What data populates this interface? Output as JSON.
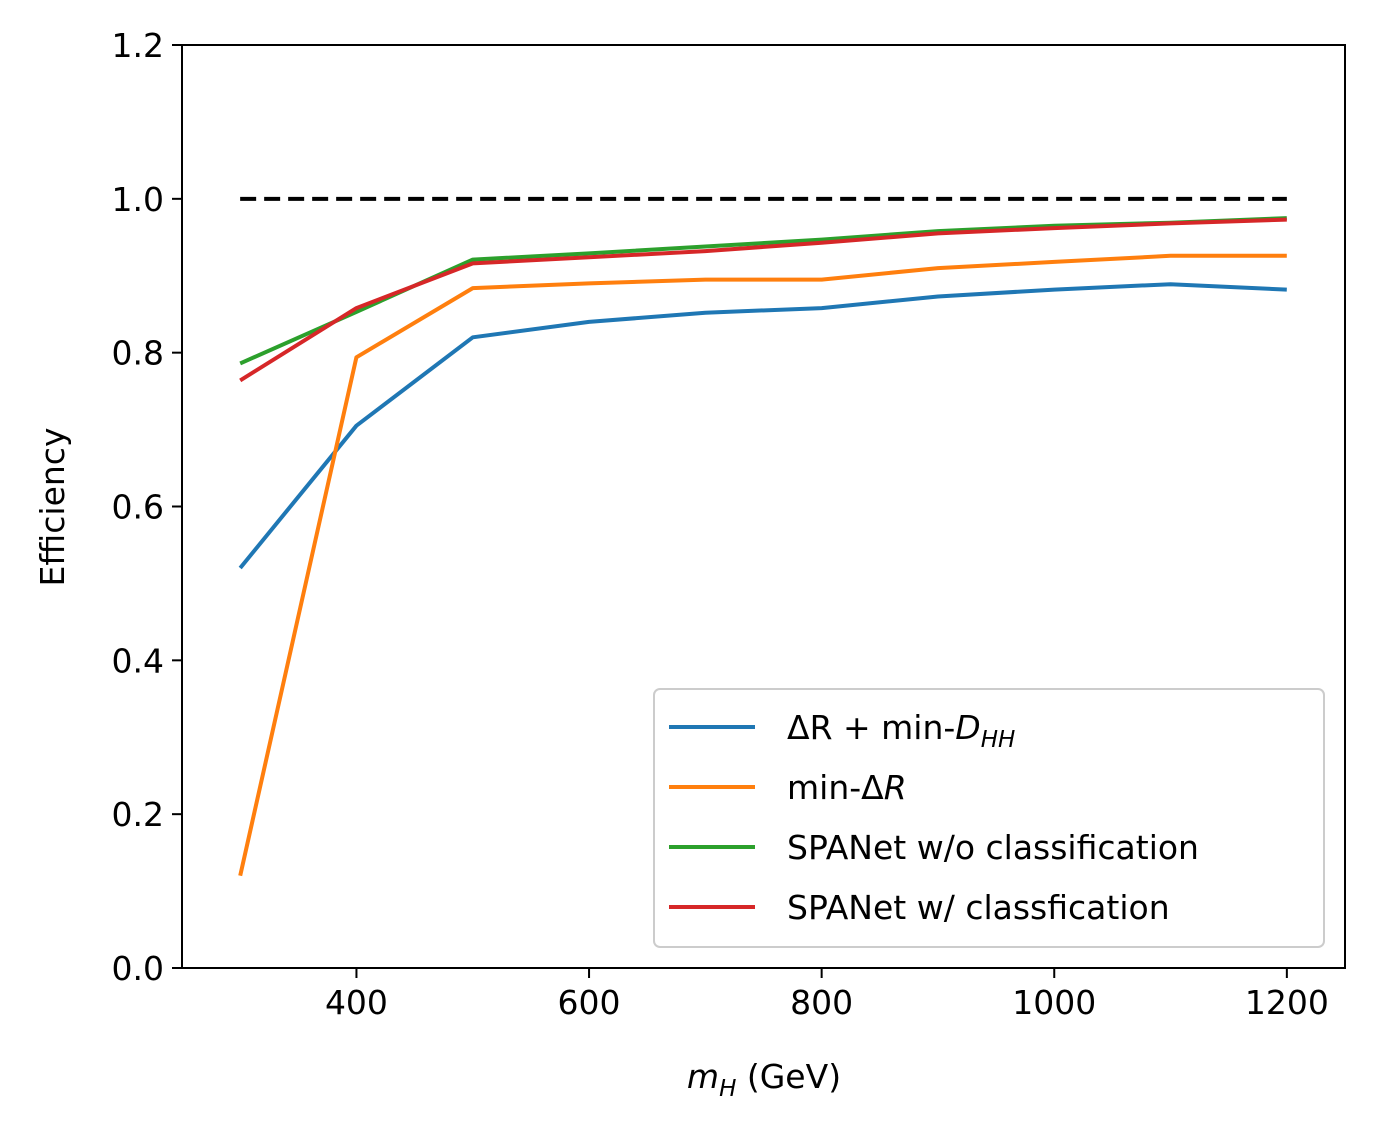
{
  "chart_data": {
    "type": "line",
    "xlabel_math": "m",
    "xlabel_sub": "H",
    "xlabel_unit": " (GeV)",
    "ylabel": "Efficiency",
    "xlim": [
      250,
      1250
    ],
    "ylim": [
      0.0,
      1.2
    ],
    "x_ticks": [
      400,
      600,
      800,
      1000,
      1200
    ],
    "x_tick_labels": [
      "400",
      "600",
      "800",
      "1000",
      "1200"
    ],
    "y_ticks": [
      0.0,
      0.2,
      0.4,
      0.6,
      0.8,
      1.0,
      1.2
    ],
    "y_tick_labels": [
      "0.0",
      "0.2",
      "0.4",
      "0.6",
      "0.8",
      "1.0",
      "1.2"
    ],
    "x": [
      300,
      400,
      500,
      600,
      700,
      800,
      900,
      1000,
      1100,
      1200
    ],
    "series": [
      {
        "legend": {
          "pre": "ΔR + min-",
          "italic": "D",
          "sub": "HH"
        },
        "color": "#1f77b4",
        "values": [
          0.52,
          0.705,
          0.82,
          0.84,
          0.852,
          0.858,
          0.873,
          0.882,
          0.889,
          0.882
        ]
      },
      {
        "legend": {
          "pre": "min-Δ",
          "italic": "R",
          "sub": ""
        },
        "color": "#ff7f0e",
        "values": [
          0.12,
          0.794,
          0.884,
          0.89,
          0.895,
          0.895,
          0.91,
          0.918,
          0.926,
          0.926
        ]
      },
      {
        "legend": {
          "pre": "SPANet w/o classification",
          "italic": "",
          "sub": ""
        },
        "color": "#2ca02c",
        "values": [
          0.786,
          0.853,
          0.921,
          0.929,
          0.938,
          0.947,
          0.958,
          0.965,
          0.969,
          0.975
        ]
      },
      {
        "legend": {
          "pre": "SPANet w/ classfication",
          "italic": "",
          "sub": ""
        },
        "color": "#d62728",
        "values": [
          0.764,
          0.858,
          0.916,
          0.924,
          0.932,
          0.943,
          0.955,
          0.962,
          0.968,
          0.973
        ]
      }
    ],
    "reference_line": {
      "y": 1.0,
      "x": [
        300,
        1200
      ],
      "color": "#000000",
      "style": "dashed"
    },
    "legend_position": "lower-right",
    "grid": false
  }
}
